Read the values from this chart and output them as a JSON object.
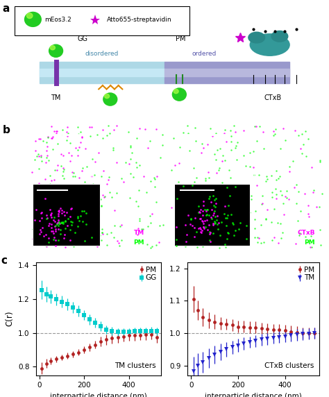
{
  "left_PM_x": [
    10,
    30,
    50,
    75,
    100,
    125,
    150,
    175,
    200,
    225,
    250,
    275,
    300,
    325,
    350,
    375,
    400,
    425,
    450,
    475,
    500,
    525
  ],
  "left_PM_y": [
    0.79,
    0.82,
    0.835,
    0.845,
    0.855,
    0.865,
    0.875,
    0.885,
    0.9,
    0.915,
    0.93,
    0.95,
    0.96,
    0.968,
    0.975,
    0.98,
    0.985,
    0.985,
    0.988,
    0.99,
    0.992,
    0.975
  ],
  "left_PM_yerr": [
    0.035,
    0.025,
    0.02,
    0.02,
    0.018,
    0.018,
    0.018,
    0.018,
    0.02,
    0.022,
    0.022,
    0.028,
    0.03,
    0.03,
    0.032,
    0.032,
    0.032,
    0.032,
    0.032,
    0.032,
    0.032,
    0.032
  ],
  "left_GG_x": [
    10,
    30,
    50,
    75,
    100,
    125,
    150,
    175,
    200,
    225,
    250,
    275,
    300,
    325,
    350,
    375,
    400,
    425,
    450,
    475,
    500,
    525
  ],
  "left_GG_y": [
    1.255,
    1.23,
    1.215,
    1.2,
    1.185,
    1.17,
    1.15,
    1.13,
    1.105,
    1.08,
    1.06,
    1.04,
    1.02,
    1.01,
    1.005,
    1.005,
    1.005,
    1.01,
    1.01,
    1.01,
    1.012,
    1.01
  ],
  "left_GG_yerr": [
    0.055,
    0.045,
    0.04,
    0.035,
    0.035,
    0.035,
    0.032,
    0.032,
    0.03,
    0.03,
    0.028,
    0.028,
    0.025,
    0.025,
    0.022,
    0.022,
    0.022,
    0.022,
    0.022,
    0.022,
    0.022,
    0.022
  ],
  "right_PM_x": [
    10,
    30,
    50,
    75,
    100,
    125,
    150,
    175,
    200,
    225,
    250,
    275,
    300,
    325,
    350,
    375,
    400,
    425,
    450,
    475,
    500,
    525
  ],
  "right_PM_y": [
    1.105,
    1.07,
    1.05,
    1.04,
    1.035,
    1.03,
    1.028,
    1.025,
    1.02,
    1.02,
    1.018,
    1.018,
    1.015,
    1.012,
    1.01,
    1.01,
    1.008,
    1.005,
    1.003,
    1.0,
    1.0,
    1.0
  ],
  "right_PM_yerr": [
    0.04,
    0.03,
    0.028,
    0.025,
    0.022,
    0.02,
    0.018,
    0.018,
    0.018,
    0.018,
    0.018,
    0.018,
    0.018,
    0.018,
    0.018,
    0.018,
    0.018,
    0.018,
    0.018,
    0.018,
    0.018,
    0.018
  ],
  "right_TM_x": [
    10,
    30,
    50,
    75,
    100,
    125,
    150,
    175,
    200,
    225,
    250,
    275,
    300,
    325,
    350,
    375,
    400,
    425,
    450,
    475,
    500,
    525
  ],
  "right_TM_y": [
    0.882,
    0.9,
    0.91,
    0.922,
    0.933,
    0.942,
    0.95,
    0.956,
    0.962,
    0.968,
    0.972,
    0.976,
    0.98,
    0.982,
    0.985,
    0.988,
    0.99,
    0.993,
    0.995,
    0.997,
    0.998,
    1.0
  ],
  "right_TM_yerr": [
    0.045,
    0.038,
    0.032,
    0.03,
    0.028,
    0.025,
    0.022,
    0.02,
    0.02,
    0.02,
    0.018,
    0.018,
    0.018,
    0.018,
    0.018,
    0.018,
    0.018,
    0.018,
    0.018,
    0.018,
    0.018,
    0.018
  ],
  "color_PM": "#b22222",
  "color_GG": "#00cccc",
  "color_TM": "#2222cc",
  "left_ylim": [
    0.75,
    1.42
  ],
  "right_ylim": [
    0.87,
    1.22
  ],
  "left_yticks": [
    0.8,
    1.0,
    1.2,
    1.4
  ],
  "right_yticks": [
    0.9,
    1.0,
    1.1,
    1.2
  ],
  "xlim": [
    -15,
    545
  ],
  "xticks": [
    0,
    200,
    400
  ],
  "xlabel": "interparticle distance (nm)",
  "ylabel": "C(r)",
  "left_label": "TM clusters",
  "right_label": "CTxB clusters",
  "panel_a_label": "a",
  "panel_b_label": "b",
  "panel_c_label": "c",
  "membrane_disordered_color": "#add8e6",
  "membrane_ordered_color": "#9999cc",
  "membrane_light_color": "#c8e8f0"
}
